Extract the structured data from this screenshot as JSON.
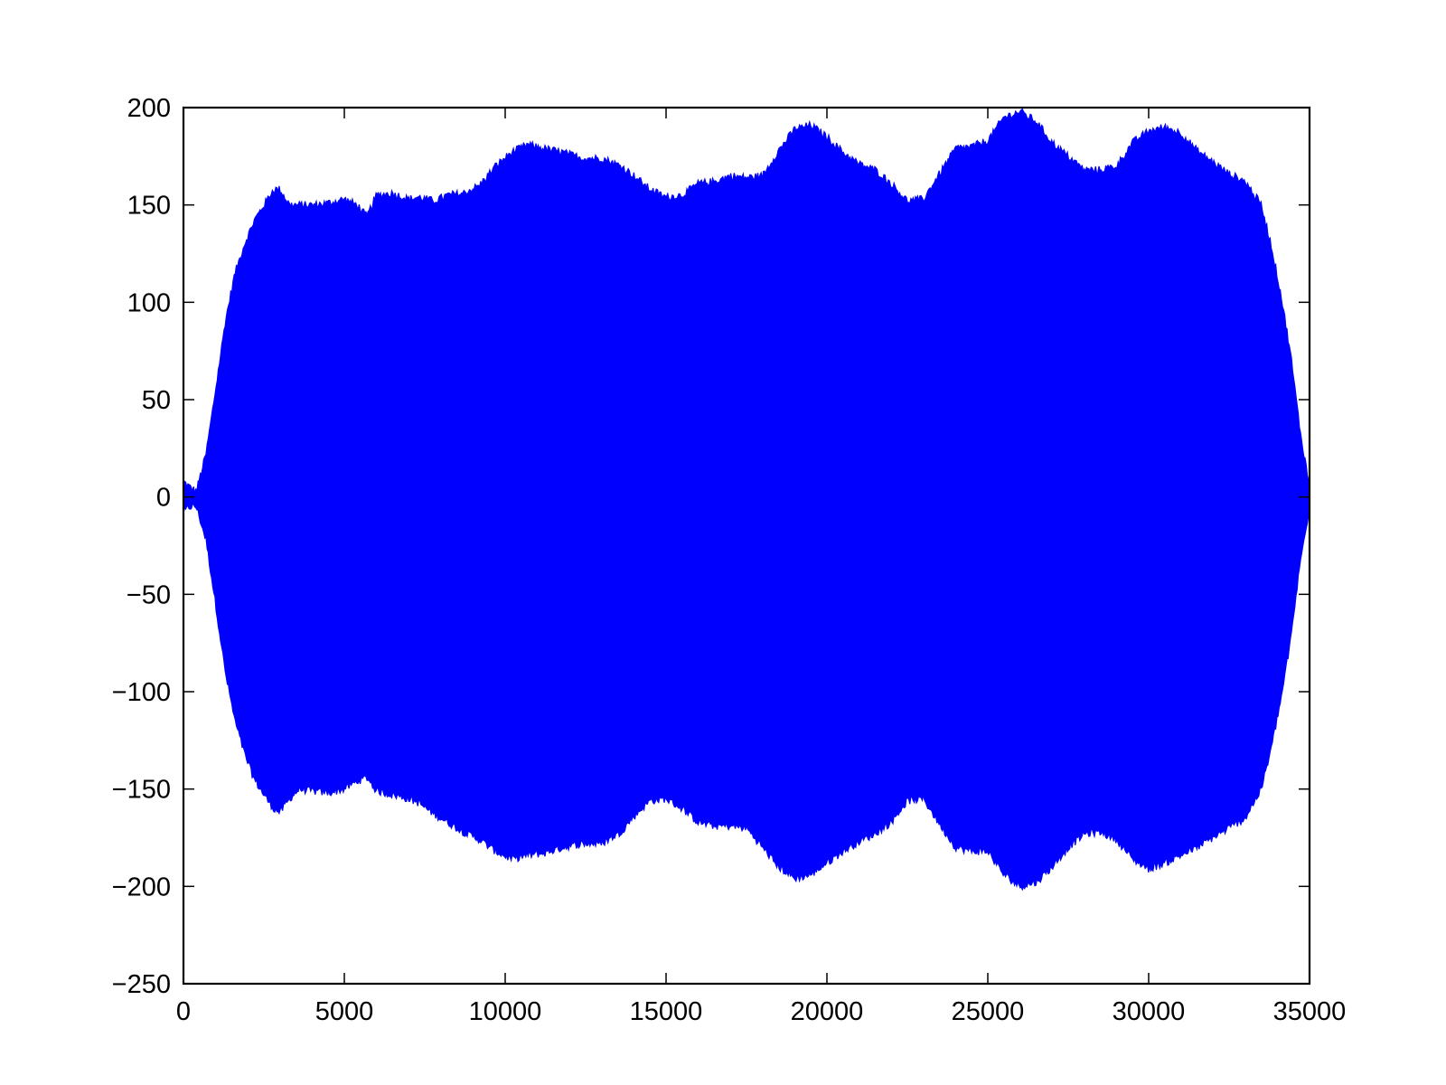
{
  "chart_data": {
    "type": "area",
    "title": "",
    "xlabel": "",
    "ylabel": "",
    "xlim": [
      0,
      35000
    ],
    "ylim": [
      -250,
      200
    ],
    "grid": false,
    "legend": "none",
    "xticks": [
      0,
      5000,
      10000,
      15000,
      20000,
      25000,
      30000,
      35000
    ],
    "xtick_labels": [
      "0",
      "5000",
      "10000",
      "15000",
      "20000",
      "25000",
      "30000",
      "35000"
    ],
    "yticks": [
      -250,
      -200,
      -150,
      -100,
      -50,
      0,
      50,
      100,
      150,
      200
    ],
    "ytick_labels": [
      "−250",
      "−200",
      "−150",
      "−100",
      "−50",
      "0",
      "50",
      "100",
      "150",
      "200"
    ],
    "series": [
      {
        "color": "#0000ff",
        "upper_envelope": {
          "x": [
            0,
            200,
            400,
            700,
            1000,
            1300,
            1600,
            1900,
            2200,
            2500,
            2800,
            3000,
            3300,
            3600,
            4000,
            4500,
            5000,
            5400,
            5700,
            6000,
            6500,
            7000,
            7300,
            7800,
            8200,
            8700,
            9200,
            9700,
            10200,
            10700,
            11200,
            11800,
            12400,
            13000,
            13600,
            14000,
            14500,
            15000,
            15500,
            16000,
            16500,
            17000,
            17500,
            18000,
            18500,
            19000,
            19500,
            20000,
            20500,
            21000,
            21500,
            22000,
            22500,
            23000,
            23500,
            24000,
            24500,
            25000,
            25500,
            26000,
            26500,
            27000,
            27500,
            28000,
            28500,
            29000,
            29500,
            30000,
            30500,
            31000,
            31500,
            32000,
            32500,
            33000,
            33500,
            33800,
            34100,
            34400,
            34700,
            34900,
            35000
          ],
          "y": [
            8,
            5,
            3,
            22,
            55,
            90,
            115,
            130,
            142,
            150,
            158,
            158,
            150,
            150,
            150,
            151,
            153,
            150,
            144,
            155,
            156,
            153,
            154,
            152,
            155,
            156,
            160,
            170,
            177,
            181,
            179,
            177,
            174,
            174,
            170,
            165,
            158,
            154,
            155,
            161,
            162,
            165,
            164,
            165,
            178,
            189,
            191,
            185,
            177,
            171,
            168,
            161,
            152,
            153,
            166,
            179,
            180,
            183,
            195,
            198,
            193,
            182,
            175,
            168,
            168,
            170,
            182,
            188,
            190,
            187,
            178,
            172,
            166,
            162,
            150,
            130,
            105,
            75,
            35,
            15,
            5
          ]
        },
        "lower_envelope": {
          "x": [
            0,
            200,
            400,
            700,
            1000,
            1300,
            1600,
            1900,
            2200,
            2500,
            2800,
            3000,
            3300,
            3600,
            4000,
            4500,
            5000,
            5400,
            5700,
            6000,
            6500,
            7000,
            7300,
            7800,
            8200,
            8700,
            9200,
            9700,
            10200,
            10700,
            11200,
            11800,
            12400,
            13000,
            13600,
            14000,
            14500,
            15000,
            15500,
            16000,
            16500,
            17000,
            17500,
            18000,
            18500,
            19000,
            19500,
            20000,
            20500,
            21000,
            21500,
            22000,
            22500,
            23000,
            23500,
            24000,
            24500,
            25000,
            25500,
            26000,
            26500,
            27000,
            27500,
            28000,
            28500,
            29000,
            29500,
            30000,
            30500,
            31000,
            31500,
            32000,
            32500,
            33000,
            33500,
            33800,
            34100,
            34400,
            34700,
            34900,
            35000
          ],
          "y": [
            -8,
            -5,
            -5,
            -22,
            -55,
            -90,
            -115,
            -132,
            -145,
            -153,
            -160,
            -162,
            -155,
            -150,
            -151,
            -152,
            -150,
            -146,
            -144,
            -151,
            -153,
            -155,
            -157,
            -163,
            -167,
            -172,
            -176,
            -182,
            -186,
            -184,
            -183,
            -180,
            -178,
            -178,
            -172,
            -164,
            -156,
            -155,
            -160,
            -167,
            -169,
            -169,
            -170,
            -180,
            -190,
            -196,
            -194,
            -188,
            -182,
            -177,
            -173,
            -167,
            -156,
            -155,
            -168,
            -180,
            -182,
            -182,
            -194,
            -200,
            -198,
            -190,
            -180,
            -173,
            -172,
            -176,
            -186,
            -191,
            -188,
            -184,
            -180,
            -175,
            -170,
            -165,
            -150,
            -130,
            -105,
            -75,
            -35,
            -15,
            -5
          ]
        }
      }
    ]
  }
}
